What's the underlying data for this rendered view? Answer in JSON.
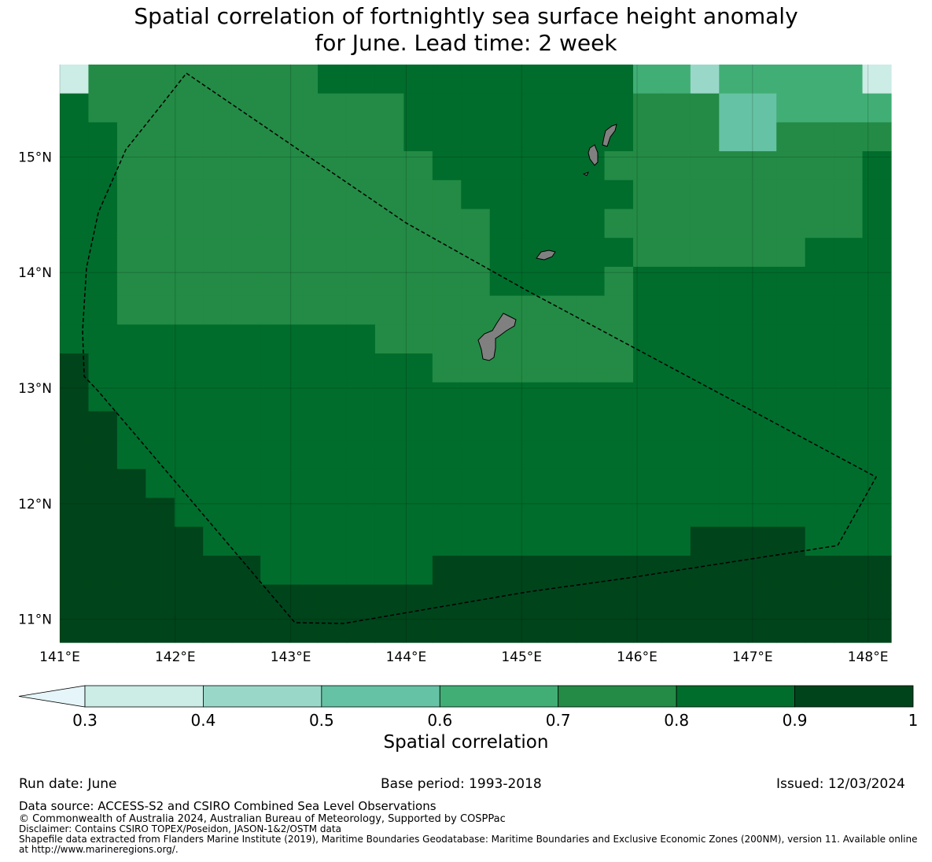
{
  "title": {
    "line1": "Spatial correlation of fortnightly sea surface height anomaly",
    "line2": "for June. Lead time: 2 week"
  },
  "map": {
    "lon_range": [
      141,
      148.2
    ],
    "lat_range": [
      10.8,
      15.8
    ],
    "x_ticks": [
      "141°E",
      "142°E",
      "143°E",
      "144°E",
      "145°E",
      "146°E",
      "147°E",
      "148°E"
    ],
    "y_ticks": [
      "15°N",
      "14°N",
      "13°N",
      "12°N",
      "11°N"
    ],
    "land_color": "#808080",
    "eez_line_style": "dashed"
  },
  "colorbar": {
    "label": "Spatial correlation",
    "ticks": [
      "0.3",
      "0.4",
      "0.5",
      "0.6",
      "0.7",
      "0.8",
      "0.9",
      "1"
    ],
    "extend": "min",
    "colors": [
      "#e5f5f9",
      "#ccece6",
      "#99d8c9",
      "#66c2a4",
      "#41ae76",
      "#238b45",
      "#006d2c",
      "#00441b"
    ]
  },
  "footer": {
    "run_date": "Run date: June",
    "base_period": "Base period: 1993-2018",
    "issued": "Issued: 12/03/2024",
    "data_source": "Data source: ACCESS-S2 and CSIRO Combined Sea Level Observations",
    "copyright": "© Commonwealth of Australia 2024, Australian Bureau of Meteorology, Supported by COSPPac",
    "disclaimer": "Disclaimer: Contains CSIRO TOPEX/Poseidon, JASON-1&2/OSTM data",
    "shapefile_1": "Shapefile data extracted from Flanders Marine Institute (2019), Maritime Boundaries Geodatabase: Maritime Boundaries and Exclusive Economic Zones (200NM), version 11. Available online",
    "shapefile_2": "at http://www.marineregions.org/."
  }
}
